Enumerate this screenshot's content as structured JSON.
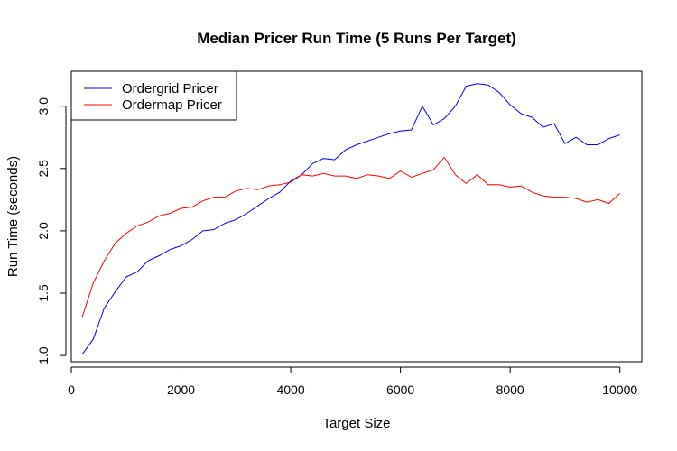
{
  "chart_data": {
    "type": "line",
    "title": "Median Pricer Run Time (5 Runs Per Target)",
    "xlabel": "Target Size",
    "ylabel": "Run Time (seconds)",
    "xlim": [
      0,
      10400
    ],
    "ylim": [
      0.95,
      3.28
    ],
    "x_ticks": [
      0,
      2000,
      4000,
      6000,
      8000,
      10000
    ],
    "y_ticks": [
      1.0,
      1.5,
      2.0,
      2.5,
      3.0
    ],
    "x_tick_labels": [
      "0",
      "2000",
      "4000",
      "6000",
      "8000",
      "10000"
    ],
    "y_tick_labels": [
      "1.0",
      "1.5",
      "2.0",
      "2.5",
      "3.0"
    ],
    "legend_position": "top-left",
    "grid": false,
    "x": [
      200,
      400,
      600,
      800,
      1000,
      1200,
      1400,
      1600,
      1800,
      2000,
      2200,
      2400,
      2600,
      2800,
      3000,
      3200,
      3400,
      3600,
      3800,
      4000,
      4200,
      4400,
      4600,
      4800,
      5000,
      5200,
      5400,
      5600,
      5800,
      6000,
      6200,
      6400,
      6600,
      6800,
      7000,
      7200,
      7400,
      7600,
      7800,
      8000,
      8200,
      8400,
      8600,
      8800,
      9000,
      9200,
      9400,
      9600,
      9800,
      10000
    ],
    "series": [
      {
        "name": "Ordergrid Pricer",
        "color": "#0000FF",
        "values": [
          1.01,
          1.13,
          1.38,
          1.51,
          1.63,
          1.67,
          1.76,
          1.8,
          1.85,
          1.88,
          1.93,
          2.0,
          2.01,
          2.06,
          2.09,
          2.14,
          2.2,
          2.26,
          2.31,
          2.4,
          2.45,
          2.54,
          2.58,
          2.57,
          2.65,
          2.69,
          2.72,
          2.75,
          2.78,
          2.8,
          2.81,
          3.0,
          2.85,
          2.9,
          3.0,
          3.16,
          3.18,
          3.17,
          3.11,
          3.01,
          2.94,
          2.91,
          2.83,
          2.86,
          2.7,
          2.75,
          2.69,
          2.69,
          2.74,
          2.77
        ]
      },
      {
        "name": "Ordermap Pricer",
        "color": "#FF0000",
        "values": [
          1.31,
          1.58,
          1.76,
          1.9,
          1.98,
          2.04,
          2.07,
          2.12,
          2.14,
          2.18,
          2.19,
          2.24,
          2.27,
          2.27,
          2.32,
          2.34,
          2.33,
          2.36,
          2.37,
          2.39,
          2.45,
          2.44,
          2.46,
          2.44,
          2.44,
          2.42,
          2.45,
          2.44,
          2.42,
          2.48,
          2.43,
          2.46,
          2.49,
          2.59,
          2.45,
          2.38,
          2.45,
          2.37,
          2.37,
          2.35,
          2.36,
          2.31,
          2.28,
          2.27,
          2.27,
          2.26,
          2.23,
          2.25,
          2.22,
          2.3
        ]
      }
    ]
  }
}
